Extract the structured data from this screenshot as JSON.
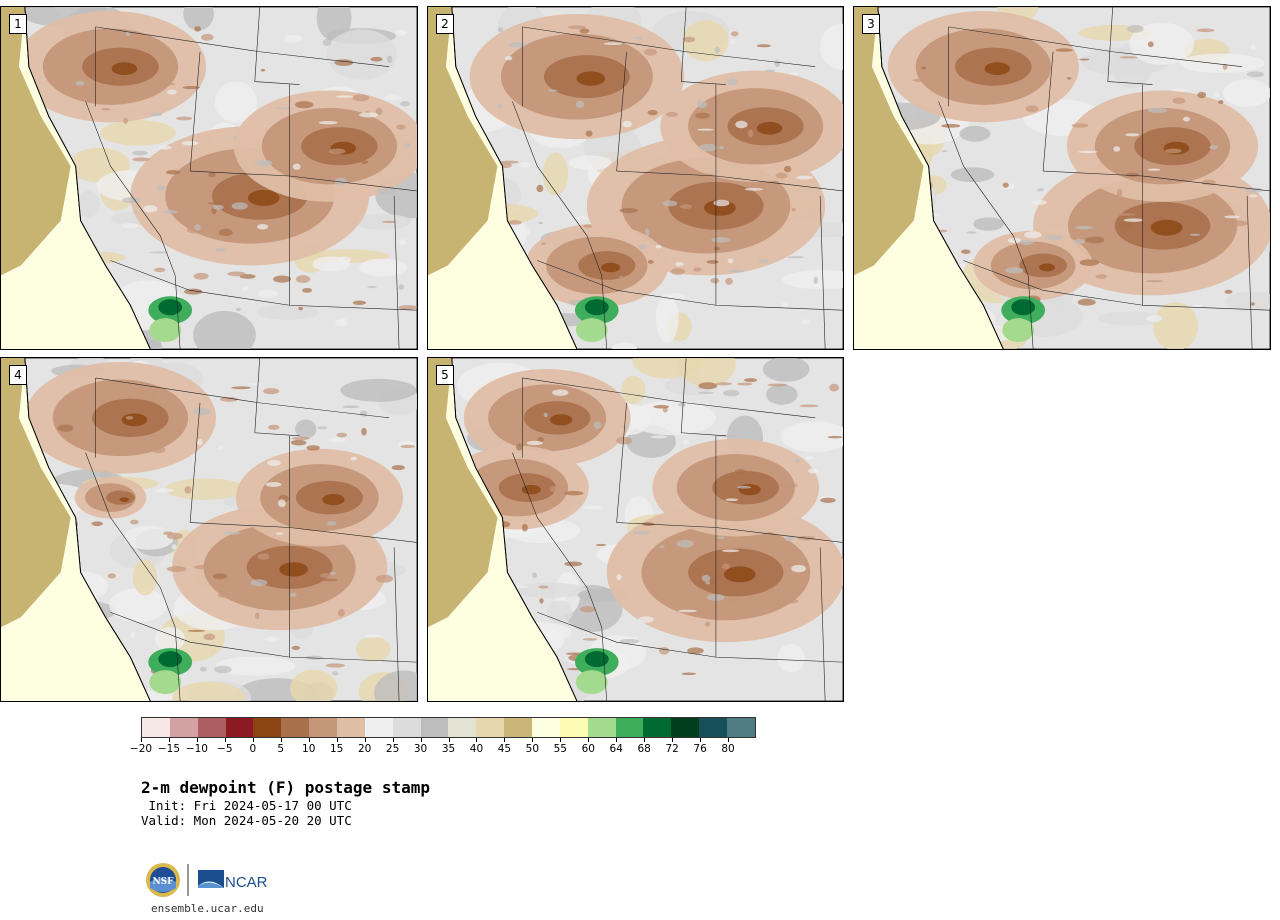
{
  "stamps": [
    {
      "number": "1"
    },
    {
      "number": "2"
    },
    {
      "number": "3"
    },
    {
      "number": "4"
    },
    {
      "number": "5"
    }
  ],
  "colorbar": {
    "colors": [
      "#f6e8e6",
      "#d4a1a3",
      "#ac5e61",
      "#8b1a25",
      "#8b4512",
      "#a8704b",
      "#c4977a",
      "#dfbea6",
      "#efefef",
      "#dcdcdc",
      "#bdbdbd",
      "#e3e3d3",
      "#e6d7ae",
      "#ccb578",
      "#fefee1",
      "#fcfcb5",
      "#a3da8d",
      "#3ead5c",
      "#006a33",
      "#023d1e",
      "#164f57",
      "#4f7c82"
    ],
    "labels": [
      "−20",
      "−15",
      "−10",
      "−5",
      "0",
      "5",
      "10",
      "15",
      "20",
      "25",
      "30",
      "35",
      "40",
      "45",
      "50",
      "55",
      "60",
      "64",
      "68",
      "72",
      "76",
      "80"
    ]
  },
  "title": "2-m dewpoint (F) postage stamp",
  "init": " Init: Fri 2024-05-17 00 UTC",
  "valid": "Valid: Mon 2024-05-20 20 UTC",
  "logos": {
    "nsf": "NSF",
    "ncar": "NCAR"
  },
  "website": "ensemble.ucar.edu"
}
